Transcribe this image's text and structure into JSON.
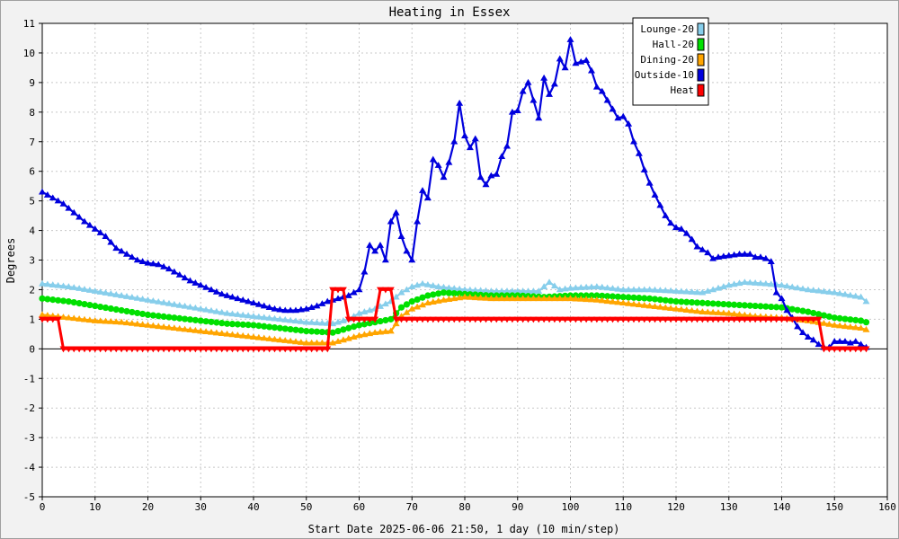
{
  "chart_data": {
    "type": "line",
    "title": "Heating in Essex",
    "xlabel": "Start Date 2025-06-06 21:50, 1 day (10 min/step)",
    "ylabel": "Degrees",
    "xlim": [
      0,
      160
    ],
    "ylim": [
      -5,
      11
    ],
    "xticks": [
      0,
      10,
      20,
      30,
      40,
      50,
      60,
      70,
      80,
      90,
      100,
      110,
      120,
      130,
      140,
      150,
      160
    ],
    "yticks": [
      -5,
      -4,
      -3,
      -2,
      -1,
      0,
      1,
      2,
      3,
      4,
      5,
      6,
      7,
      8,
      9,
      10,
      11
    ],
    "grid": true,
    "legend_position": "top-right",
    "series": [
      {
        "name": "Lounge-20",
        "color": "#87ceeb",
        "marker": "triangle",
        "points": [
          [
            0,
            2.2
          ],
          [
            5,
            2.1
          ],
          [
            10,
            1.95
          ],
          [
            15,
            1.8
          ],
          [
            20,
            1.65
          ],
          [
            25,
            1.5
          ],
          [
            30,
            1.35
          ],
          [
            35,
            1.2
          ],
          [
            40,
            1.1
          ],
          [
            45,
            1.0
          ],
          [
            50,
            0.9
          ],
          [
            55,
            0.85
          ],
          [
            58,
            1.0
          ],
          [
            60,
            1.2
          ],
          [
            63,
            1.35
          ],
          [
            66,
            1.6
          ],
          [
            68,
            1.9
          ],
          [
            70,
            2.1
          ],
          [
            72,
            2.2
          ],
          [
            75,
            2.1
          ],
          [
            80,
            2.0
          ],
          [
            85,
            1.95
          ],
          [
            90,
            1.95
          ],
          [
            94,
            1.95
          ],
          [
            96,
            2.25
          ],
          [
            98,
            2.0
          ],
          [
            100,
            2.05
          ],
          [
            105,
            2.1
          ],
          [
            110,
            2.0
          ],
          [
            115,
            2.0
          ],
          [
            120,
            1.95
          ],
          [
            125,
            1.9
          ],
          [
            128,
            2.05
          ],
          [
            130,
            2.15
          ],
          [
            133,
            2.25
          ],
          [
            137,
            2.2
          ],
          [
            140,
            2.15
          ],
          [
            145,
            2.0
          ],
          [
            150,
            1.9
          ],
          [
            155,
            1.75
          ],
          [
            156,
            1.6
          ]
        ]
      },
      {
        "name": "Hall-20",
        "color": "#00e000",
        "marker": "circle",
        "points": [
          [
            0,
            1.7
          ],
          [
            5,
            1.6
          ],
          [
            10,
            1.45
          ],
          [
            15,
            1.3
          ],
          [
            20,
            1.15
          ],
          [
            25,
            1.05
          ],
          [
            30,
            0.95
          ],
          [
            35,
            0.85
          ],
          [
            40,
            0.8
          ],
          [
            45,
            0.7
          ],
          [
            50,
            0.6
          ],
          [
            55,
            0.55
          ],
          [
            58,
            0.7
          ],
          [
            60,
            0.8
          ],
          [
            63,
            0.9
          ],
          [
            66,
            1.0
          ],
          [
            68,
            1.4
          ],
          [
            70,
            1.6
          ],
          [
            73,
            1.8
          ],
          [
            76,
            1.9
          ],
          [
            80,
            1.85
          ],
          [
            85,
            1.8
          ],
          [
            90,
            1.8
          ],
          [
            95,
            1.75
          ],
          [
            100,
            1.8
          ],
          [
            105,
            1.8
          ],
          [
            110,
            1.75
          ],
          [
            115,
            1.7
          ],
          [
            120,
            1.6
          ],
          [
            125,
            1.55
          ],
          [
            130,
            1.5
          ],
          [
            135,
            1.45
          ],
          [
            140,
            1.4
          ],
          [
            145,
            1.25
          ],
          [
            150,
            1.05
          ],
          [
            155,
            0.95
          ],
          [
            156,
            0.9
          ]
        ]
      },
      {
        "name": "Dining-20",
        "color": "#ffa500",
        "marker": "triangle",
        "points": [
          [
            0,
            1.15
          ],
          [
            5,
            1.05
          ],
          [
            10,
            0.95
          ],
          [
            15,
            0.9
          ],
          [
            20,
            0.8
          ],
          [
            25,
            0.7
          ],
          [
            30,
            0.6
          ],
          [
            35,
            0.5
          ],
          [
            40,
            0.4
          ],
          [
            45,
            0.3
          ],
          [
            50,
            0.2
          ],
          [
            55,
            0.2
          ],
          [
            58,
            0.35
          ],
          [
            60,
            0.45
          ],
          [
            63,
            0.55
          ],
          [
            66,
            0.6
          ],
          [
            68,
            1.1
          ],
          [
            70,
            1.35
          ],
          [
            73,
            1.55
          ],
          [
            76,
            1.65
          ],
          [
            80,
            1.75
          ],
          [
            85,
            1.7
          ],
          [
            90,
            1.7
          ],
          [
            95,
            1.7
          ],
          [
            100,
            1.7
          ],
          [
            105,
            1.65
          ],
          [
            110,
            1.55
          ],
          [
            115,
            1.45
          ],
          [
            120,
            1.35
          ],
          [
            125,
            1.25
          ],
          [
            130,
            1.2
          ],
          [
            135,
            1.1
          ],
          [
            140,
            1.05
          ],
          [
            145,
            0.95
          ],
          [
            150,
            0.8
          ],
          [
            155,
            0.7
          ],
          [
            156,
            0.65
          ]
        ]
      },
      {
        "name": "Outside-10",
        "color": "#0000dd",
        "marker": "triangle",
        "points": [
          [
            0,
            5.3
          ],
          [
            2,
            5.1
          ],
          [
            4,
            4.9
          ],
          [
            6,
            4.6
          ],
          [
            8,
            4.3
          ],
          [
            10,
            4.05
          ],
          [
            12,
            3.8
          ],
          [
            14,
            3.4
          ],
          [
            16,
            3.2
          ],
          [
            18,
            3.0
          ],
          [
            20,
            2.9
          ],
          [
            22,
            2.85
          ],
          [
            24,
            2.7
          ],
          [
            26,
            2.5
          ],
          [
            28,
            2.3
          ],
          [
            30,
            2.15
          ],
          [
            32,
            2.0
          ],
          [
            34,
            1.85
          ],
          [
            36,
            1.75
          ],
          [
            38,
            1.65
          ],
          [
            40,
            1.55
          ],
          [
            42,
            1.45
          ],
          [
            44,
            1.35
          ],
          [
            46,
            1.3
          ],
          [
            48,
            1.3
          ],
          [
            50,
            1.35
          ],
          [
            52,
            1.45
          ],
          [
            54,
            1.6
          ],
          [
            56,
            1.7
          ],
          [
            58,
            1.8
          ],
          [
            60,
            2.0
          ],
          [
            61,
            2.6
          ],
          [
            62,
            3.5
          ],
          [
            63,
            3.3
          ],
          [
            64,
            3.5
          ],
          [
            65,
            3.0
          ],
          [
            66,
            4.3
          ],
          [
            67,
            4.6
          ],
          [
            68,
            3.8
          ],
          [
            69,
            3.3
          ],
          [
            70,
            3.0
          ],
          [
            71,
            4.3
          ],
          [
            72,
            5.35
          ],
          [
            73,
            5.1
          ],
          [
            74,
            6.4
          ],
          [
            75,
            6.2
          ],
          [
            76,
            5.8
          ],
          [
            77,
            6.3
          ],
          [
            78,
            7.0
          ],
          [
            79,
            8.3
          ],
          [
            80,
            7.2
          ],
          [
            81,
            6.8
          ],
          [
            82,
            7.1
          ],
          [
            83,
            5.8
          ],
          [
            84,
            5.55
          ],
          [
            85,
            5.85
          ],
          [
            86,
            5.9
          ],
          [
            87,
            6.5
          ],
          [
            88,
            6.85
          ],
          [
            89,
            8.0
          ],
          [
            90,
            8.05
          ],
          [
            91,
            8.7
          ],
          [
            92,
            9.0
          ],
          [
            93,
            8.4
          ],
          [
            94,
            7.8
          ],
          [
            95,
            9.15
          ],
          [
            96,
            8.6
          ],
          [
            97,
            8.95
          ],
          [
            98,
            9.8
          ],
          [
            99,
            9.5
          ],
          [
            100,
            10.45
          ],
          [
            101,
            9.65
          ],
          [
            102,
            9.7
          ],
          [
            103,
            9.75
          ],
          [
            104,
            9.4
          ],
          [
            105,
            8.85
          ],
          [
            106,
            8.7
          ],
          [
            107,
            8.4
          ],
          [
            108,
            8.1
          ],
          [
            109,
            7.8
          ],
          [
            110,
            7.85
          ],
          [
            111,
            7.6
          ],
          [
            112,
            7.0
          ],
          [
            113,
            6.6
          ],
          [
            114,
            6.05
          ],
          [
            115,
            5.6
          ],
          [
            116,
            5.2
          ],
          [
            117,
            4.85
          ],
          [
            118,
            4.5
          ],
          [
            119,
            4.25
          ],
          [
            120,
            4.1
          ],
          [
            121,
            4.05
          ],
          [
            122,
            3.9
          ],
          [
            123,
            3.7
          ],
          [
            124,
            3.45
          ],
          [
            125,
            3.35
          ],
          [
            126,
            3.25
          ],
          [
            127,
            3.05
          ],
          [
            128,
            3.1
          ],
          [
            130,
            3.15
          ],
          [
            132,
            3.2
          ],
          [
            134,
            3.2
          ],
          [
            135,
            3.1
          ],
          [
            136,
            3.1
          ],
          [
            137,
            3.05
          ],
          [
            138,
            2.95
          ],
          [
            139,
            1.9
          ],
          [
            140,
            1.7
          ],
          [
            141,
            1.3
          ],
          [
            142,
            1.05
          ],
          [
            143,
            0.75
          ],
          [
            144,
            0.55
          ],
          [
            145,
            0.4
          ],
          [
            146,
            0.3
          ],
          [
            147,
            0.15
          ],
          [
            148,
            0.05
          ],
          [
            149,
            0.05
          ],
          [
            150,
            0.25
          ],
          [
            151,
            0.25
          ],
          [
            152,
            0.25
          ],
          [
            153,
            0.2
          ],
          [
            154,
            0.25
          ],
          [
            155,
            0.15
          ],
          [
            156,
            0.05
          ]
        ]
      },
      {
        "name": "Heat",
        "color": "#ff0000",
        "marker": "triangle-down",
        "points": [
          [
            0,
            1
          ],
          [
            1,
            1
          ],
          [
            2,
            1
          ],
          [
            3,
            1
          ],
          [
            4,
            0
          ],
          [
            10,
            0
          ],
          [
            20,
            0
          ],
          [
            30,
            0
          ],
          [
            40,
            0
          ],
          [
            50,
            0
          ],
          [
            54,
            0
          ],
          [
            55,
            2
          ],
          [
            56,
            2
          ],
          [
            57,
            2
          ],
          [
            58,
            1
          ],
          [
            60,
            1
          ],
          [
            62,
            1
          ],
          [
            63,
            1
          ],
          [
            64,
            2
          ],
          [
            65,
            2
          ],
          [
            66,
            2
          ],
          [
            67,
            1
          ],
          [
            70,
            1
          ],
          [
            80,
            1
          ],
          [
            90,
            1
          ],
          [
            100,
            1
          ],
          [
            110,
            1
          ],
          [
            120,
            1
          ],
          [
            130,
            1
          ],
          [
            140,
            1
          ],
          [
            145,
            1
          ],
          [
            147,
            1
          ],
          [
            148,
            0
          ],
          [
            150,
            0
          ],
          [
            152,
            0
          ],
          [
            154,
            0
          ],
          [
            156,
            0
          ]
        ]
      }
    ]
  }
}
